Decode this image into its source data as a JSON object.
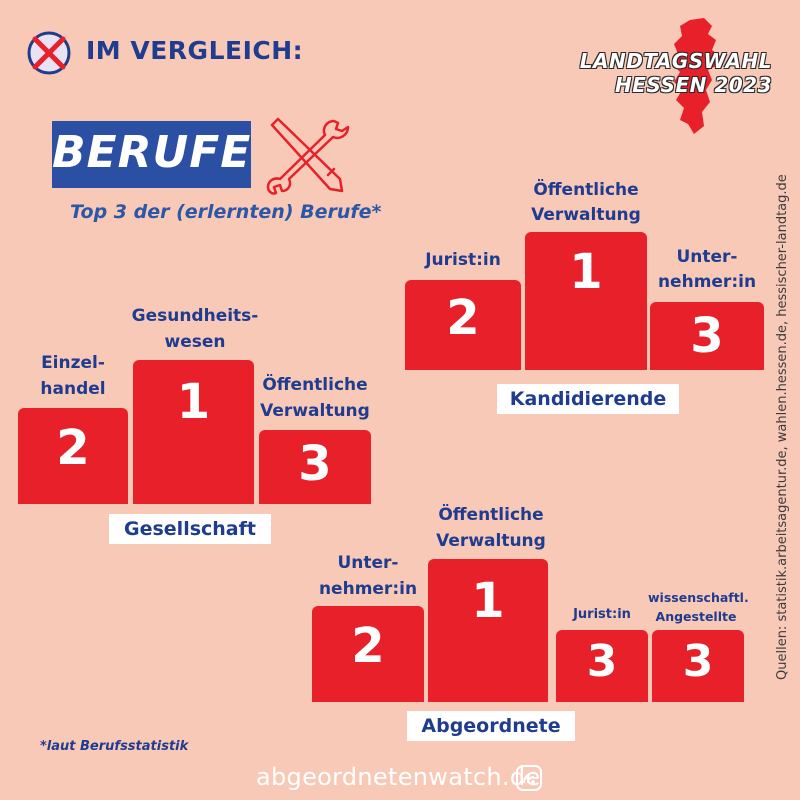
{
  "header": {
    "title": "IM VERGLEICH:"
  },
  "logo": {
    "line1": "LANDTAGSWAHL",
    "line2": "HESSEN 2023"
  },
  "topic": {
    "label": "BERUFE",
    "subtitle": "Top 3 der (erlernten) Berufe*"
  },
  "podiums": {
    "kandidierende": {
      "group": "Kandidierende",
      "first": {
        "rank": "1",
        "label_1": "Öffentliche",
        "label_2": "Verwaltung"
      },
      "second": {
        "rank": "2",
        "label_1": "Jurist:in"
      },
      "third": {
        "rank": "3",
        "label_1": "Unter-",
        "label_2": "nehmer:in"
      }
    },
    "gesellschaft": {
      "group": "Gesellschaft",
      "first": {
        "rank": "1",
        "label_1": "Gesundheits-",
        "label_2": "wesen"
      },
      "second": {
        "rank": "2",
        "label_1": "Einzel-",
        "label_2": "handel"
      },
      "third": {
        "rank": "3",
        "label_1": "Öffentliche",
        "label_2": "Verwaltung"
      }
    },
    "abgeordnete": {
      "group": "Abgeordnete",
      "first": {
        "rank": "1",
        "label_1": "Öffentliche",
        "label_2": "Verwaltung"
      },
      "second": {
        "rank": "2",
        "label_1": "Unter-",
        "label_2": "nehmer:in"
      },
      "third_a": {
        "rank": "3",
        "label_1": "Jurist:in"
      },
      "third_b": {
        "rank": "3",
        "label_1": "wissenschaftl.",
        "label_2": "Angestellte"
      }
    }
  },
  "sources": "Quellen: statistik.arbeitsagentur.de, wahlen.hessen.de, hessischer-landtag.de",
  "footnote": "*laut Berufsstatistik",
  "brand": "abgeordnetenwatch.de",
  "colors": {
    "background": "#f9c9b8",
    "red": "#e8202a",
    "navy": "#1f3c8f",
    "box_blue": "#2b4fa2"
  }
}
